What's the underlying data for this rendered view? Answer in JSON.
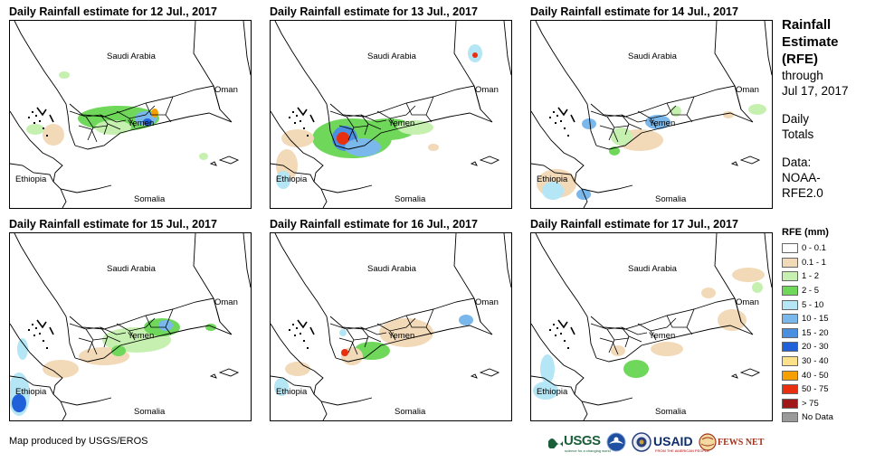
{
  "panels": [
    {
      "title": "Daily Rainfall estimate for 12 Jul., 2017"
    },
    {
      "title": "Daily Rainfall estimate for 13 Jul., 2017"
    },
    {
      "title": "Daily Rainfall estimate for 14 Jul., 2017"
    },
    {
      "title": "Daily Rainfall estimate for 15 Jul., 2017"
    },
    {
      "title": "Daily Rainfall estimate for 16 Jul., 2017"
    },
    {
      "title": "Daily Rainfall estimate for 17 Jul., 2017"
    }
  ],
  "map_labels": {
    "saudi_arabia": "Saudi Arabia",
    "oman": "Oman",
    "yemen": "Yemen",
    "ethiopia": "Ethiopia",
    "somalia": "Somalia"
  },
  "sidebar": {
    "title_line1": "Rainfall",
    "title_line2": "Estimate",
    "title_line3": "(RFE)",
    "through": "through",
    "date": "Jul 17, 2017",
    "daily": "Daily",
    "totals": "Totals",
    "data_label": "Data:",
    "source_line1": "NOAA-",
    "source_line2": "RFE2.0"
  },
  "legend": {
    "title": "RFE (mm)",
    "items": [
      {
        "label": "0 - 0.1",
        "color": "#ffffff"
      },
      {
        "label": "0.1 - 1",
        "color": "#f2d9b8"
      },
      {
        "label": "1 - 2",
        "color": "#c6f0b0"
      },
      {
        "label": "2 - 5",
        "color": "#6fd85a"
      },
      {
        "label": "5 - 10",
        "color": "#b4e6f6"
      },
      {
        "label": "10 - 15",
        "color": "#7ab8ec"
      },
      {
        "label": "15 - 20",
        "color": "#4a8fe0"
      },
      {
        "label": "20 - 30",
        "color": "#2060d8"
      },
      {
        "label": "30 - 40",
        "color": "#fce08a"
      },
      {
        "label": "40 - 50",
        "color": "#f5a000"
      },
      {
        "label": "50 - 75",
        "color": "#e83010"
      },
      {
        "label": "> 75",
        "color": "#a01818"
      },
      {
        "label": "No Data",
        "color": "#9a9a9a"
      }
    ]
  },
  "credit": "Map produced by USGS/EROS",
  "logos": {
    "usgs": "USGS",
    "usgs_tagline": "science for a changing world",
    "usaid": "USAID",
    "usaid_tagline": "FROM THE AMERICAN PEOPLE",
    "fews": "FEWS NET"
  }
}
